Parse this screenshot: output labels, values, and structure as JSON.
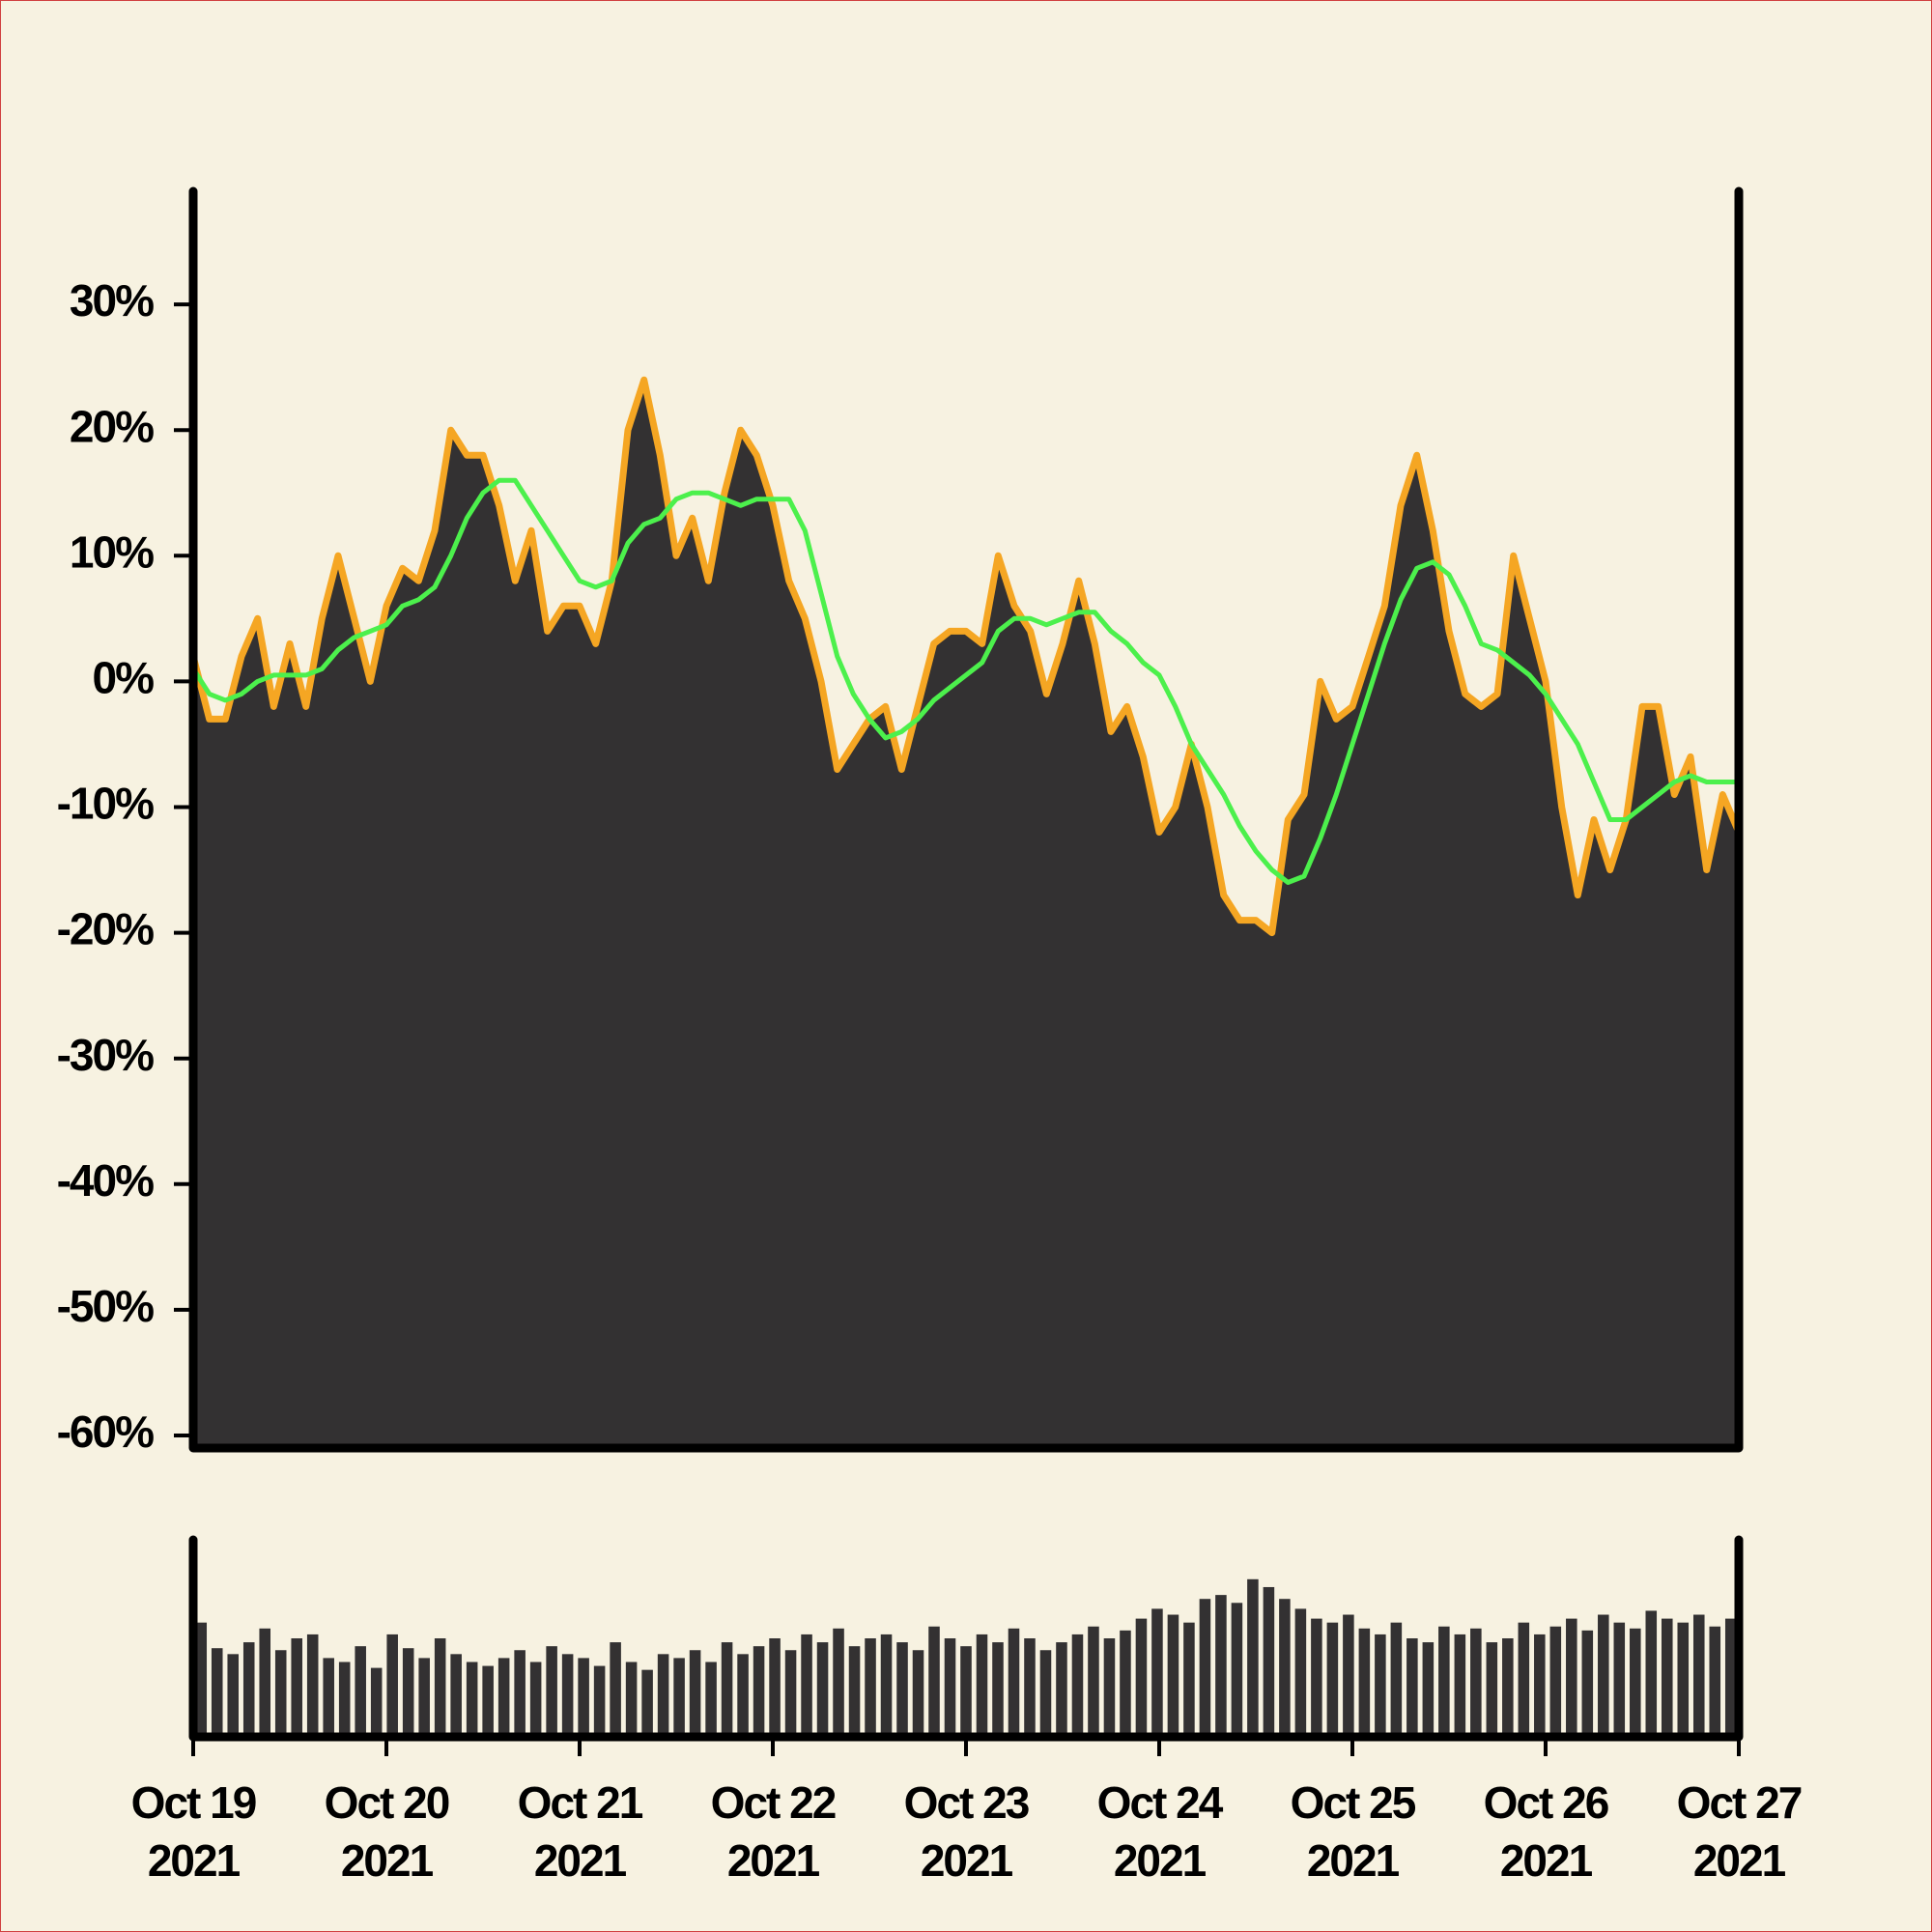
{
  "chart_data": [
    {
      "type": "area",
      "xlim": [
        "2021-10-19",
        "2021-10-27"
      ],
      "ylim": [
        -61,
        39
      ],
      "yticks": [
        {
          "value": 30,
          "label": "30%"
        },
        {
          "value": 20,
          "label": "20%"
        },
        {
          "value": 10,
          "label": "10%"
        },
        {
          "value": 0,
          "label": "0%"
        },
        {
          "value": -10,
          "label": "-10%"
        },
        {
          "value": -20,
          "label": "-20%"
        },
        {
          "value": -30,
          "label": "-30%"
        },
        {
          "value": -40,
          "label": "-40%"
        },
        {
          "value": -50,
          "label": "-50%"
        },
        {
          "value": -60,
          "label": "-60%"
        }
      ],
      "series": [
        {
          "color": "#f5a623",
          "fill": "#333132",
          "values": [
            2,
            -3,
            -3,
            2,
            5,
            -2,
            3,
            -2,
            5,
            10,
            5,
            0,
            6,
            9,
            8,
            12,
            20,
            18,
            18,
            14,
            8,
            12,
            4,
            6,
            6,
            3,
            8,
            20,
            24,
            18,
            10,
            13,
            8,
            15,
            20,
            18,
            14,
            8,
            5,
            0,
            -7,
            -5,
            -3,
            -2,
            -7,
            -2,
            3,
            4,
            4,
            3,
            10,
            6,
            4,
            -1,
            3,
            8,
            3,
            -4,
            -2,
            -6,
            -12,
            -10,
            -5,
            -10,
            -17,
            -19,
            -19,
            -20,
            -11,
            -9,
            0,
            -3,
            -2,
            2,
            6,
            14,
            18,
            12,
            4,
            -1,
            -2,
            -1,
            10,
            5,
            0,
            -10,
            -17,
            -11,
            -15,
            -11,
            -2,
            -2,
            -9,
            -6,
            -15,
            -9,
            -12
          ]
        },
        {
          "color": "#4cf04c",
          "values": [
            1,
            -1,
            -1.5,
            -1,
            0,
            0.5,
            0.5,
            0.5,
            1,
            2.5,
            3.5,
            4,
            4.5,
            6,
            6.5,
            7.5,
            10,
            13,
            15,
            16,
            16,
            14,
            12,
            10,
            8,
            7.5,
            8,
            11,
            12.5,
            13,
            14.5,
            15,
            15,
            14.5,
            14,
            14.5,
            14.5,
            14.5,
            12,
            7,
            2,
            -1,
            -3,
            -4.5,
            -4,
            -3,
            -1.5,
            -0.5,
            0.5,
            1.5,
            4,
            5,
            5,
            4.5,
            5,
            5.5,
            5.5,
            4,
            3,
            1.5,
            0.5,
            -2,
            -5,
            -7,
            -9,
            -11.5,
            -13.5,
            -15,
            -16,
            -15.5,
            -12.5,
            -9,
            -5,
            -1,
            3,
            6.5,
            9,
            9.5,
            8.5,
            6,
            3,
            2.5,
            1.5,
            0.5,
            -1,
            -3,
            -5,
            -8,
            -11,
            -11,
            -10,
            -9,
            -8,
            -7.5,
            -8,
            -8,
            -8
          ]
        }
      ]
    },
    {
      "type": "bar",
      "color": "#333132",
      "xlim": [
        "2021-10-19",
        "2021-10-27"
      ],
      "ylim": [
        0,
        100
      ],
      "xticks": [
        {
          "value": "2021-10-19",
          "label": "Oct 19\n2021"
        },
        {
          "value": "2021-10-20",
          "label": "Oct 20\n2021"
        },
        {
          "value": "2021-10-21",
          "label": "Oct 21\n2021"
        },
        {
          "value": "2021-10-22",
          "label": "Oct 22\n2021"
        },
        {
          "value": "2021-10-23",
          "label": "Oct 23\n2021"
        },
        {
          "value": "2021-10-24",
          "label": "Oct 24\n2021"
        },
        {
          "value": "2021-10-25",
          "label": "Oct 25\n2021"
        },
        {
          "value": "2021-10-26",
          "label": "Oct 26\n2021"
        },
        {
          "value": "2021-10-27",
          "label": "Oct 27\n2021"
        }
      ],
      "values": [
        58,
        45,
        42,
        48,
        55,
        44,
        50,
        52,
        40,
        38,
        46,
        35,
        52,
        45,
        40,
        50,
        42,
        38,
        36,
        40,
        44,
        38,
        46,
        42,
        40,
        36,
        48,
        38,
        34,
        42,
        40,
        44,
        38,
        48,
        42,
        46,
        50,
        44,
        52,
        48,
        55,
        46,
        50,
        52,
        48,
        44,
        56,
        50,
        46,
        52,
        48,
        55,
        50,
        44,
        48,
        52,
        56,
        50,
        54,
        60,
        65,
        62,
        58,
        70,
        72,
        68,
        80,
        76,
        70,
        65,
        60,
        58,
        62,
        55,
        52,
        58,
        50,
        48,
        56,
        52,
        55,
        48,
        50,
        58,
        52,
        56,
        60,
        54,
        62,
        58,
        55,
        64,
        60,
        58,
        62,
        56,
        60
      ]
    }
  ]
}
